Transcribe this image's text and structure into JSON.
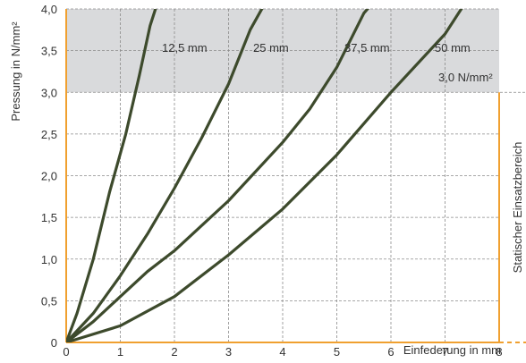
{
  "chart_data": {
    "type": "line",
    "xlabel": "Einfederung in mm",
    "ylabel": "Pressung in N/mm²",
    "xlim": [
      0,
      8
    ],
    "ylim": [
      0,
      4.0
    ],
    "x_ticks": [
      "0",
      "1",
      "2",
      "3",
      "4",
      "5",
      "6",
      "7",
      "8"
    ],
    "y_ticks": [
      "0",
      "0,5",
      "1,0",
      "1,5",
      "2,0",
      "2,5",
      "3,0",
      "3,5",
      "4,0"
    ],
    "grid": true,
    "region": {
      "label": "Statischer Einsatzbereich",
      "y_range": [
        0,
        3.0
      ],
      "limit_label": "3,0 N/mm²",
      "fill_above_color": "#d9dadc",
      "border_color": "#f0a030"
    },
    "line_color": "#3d4a2c",
    "series": [
      {
        "name": "12,5 mm",
        "points": [
          [
            0,
            0
          ],
          [
            0.2,
            0.35
          ],
          [
            0.5,
            1.0
          ],
          [
            0.8,
            1.8
          ],
          [
            1.1,
            2.5
          ],
          [
            1.35,
            3.2
          ],
          [
            1.55,
            3.8
          ],
          [
            1.7,
            4.1
          ]
        ]
      },
      {
        "name": "25 mm",
        "points": [
          [
            0,
            0
          ],
          [
            0.5,
            0.35
          ],
          [
            1.0,
            0.8
          ],
          [
            1.5,
            1.3
          ],
          [
            2.0,
            1.85
          ],
          [
            2.5,
            2.45
          ],
          [
            3.0,
            3.1
          ],
          [
            3.4,
            3.75
          ],
          [
            3.7,
            4.1
          ]
        ]
      },
      {
        "name": "37,5 mm",
        "points": [
          [
            0,
            0
          ],
          [
            0.5,
            0.25
          ],
          [
            1.0,
            0.55
          ],
          [
            1.5,
            0.85
          ],
          [
            2.0,
            1.1
          ],
          [
            3.0,
            1.7
          ],
          [
            4.0,
            2.4
          ],
          [
            4.5,
            2.8
          ],
          [
            5.0,
            3.3
          ],
          [
            5.5,
            3.95
          ],
          [
            5.7,
            4.1
          ]
        ]
      },
      {
        "name": "50 mm",
        "points": [
          [
            0,
            0
          ],
          [
            1.0,
            0.2
          ],
          [
            2.0,
            0.55
          ],
          [
            3.0,
            1.05
          ],
          [
            4.0,
            1.6
          ],
          [
            5.0,
            2.25
          ],
          [
            6.0,
            3.0
          ],
          [
            7.0,
            3.7
          ],
          [
            7.4,
            4.1
          ]
        ]
      }
    ]
  }
}
